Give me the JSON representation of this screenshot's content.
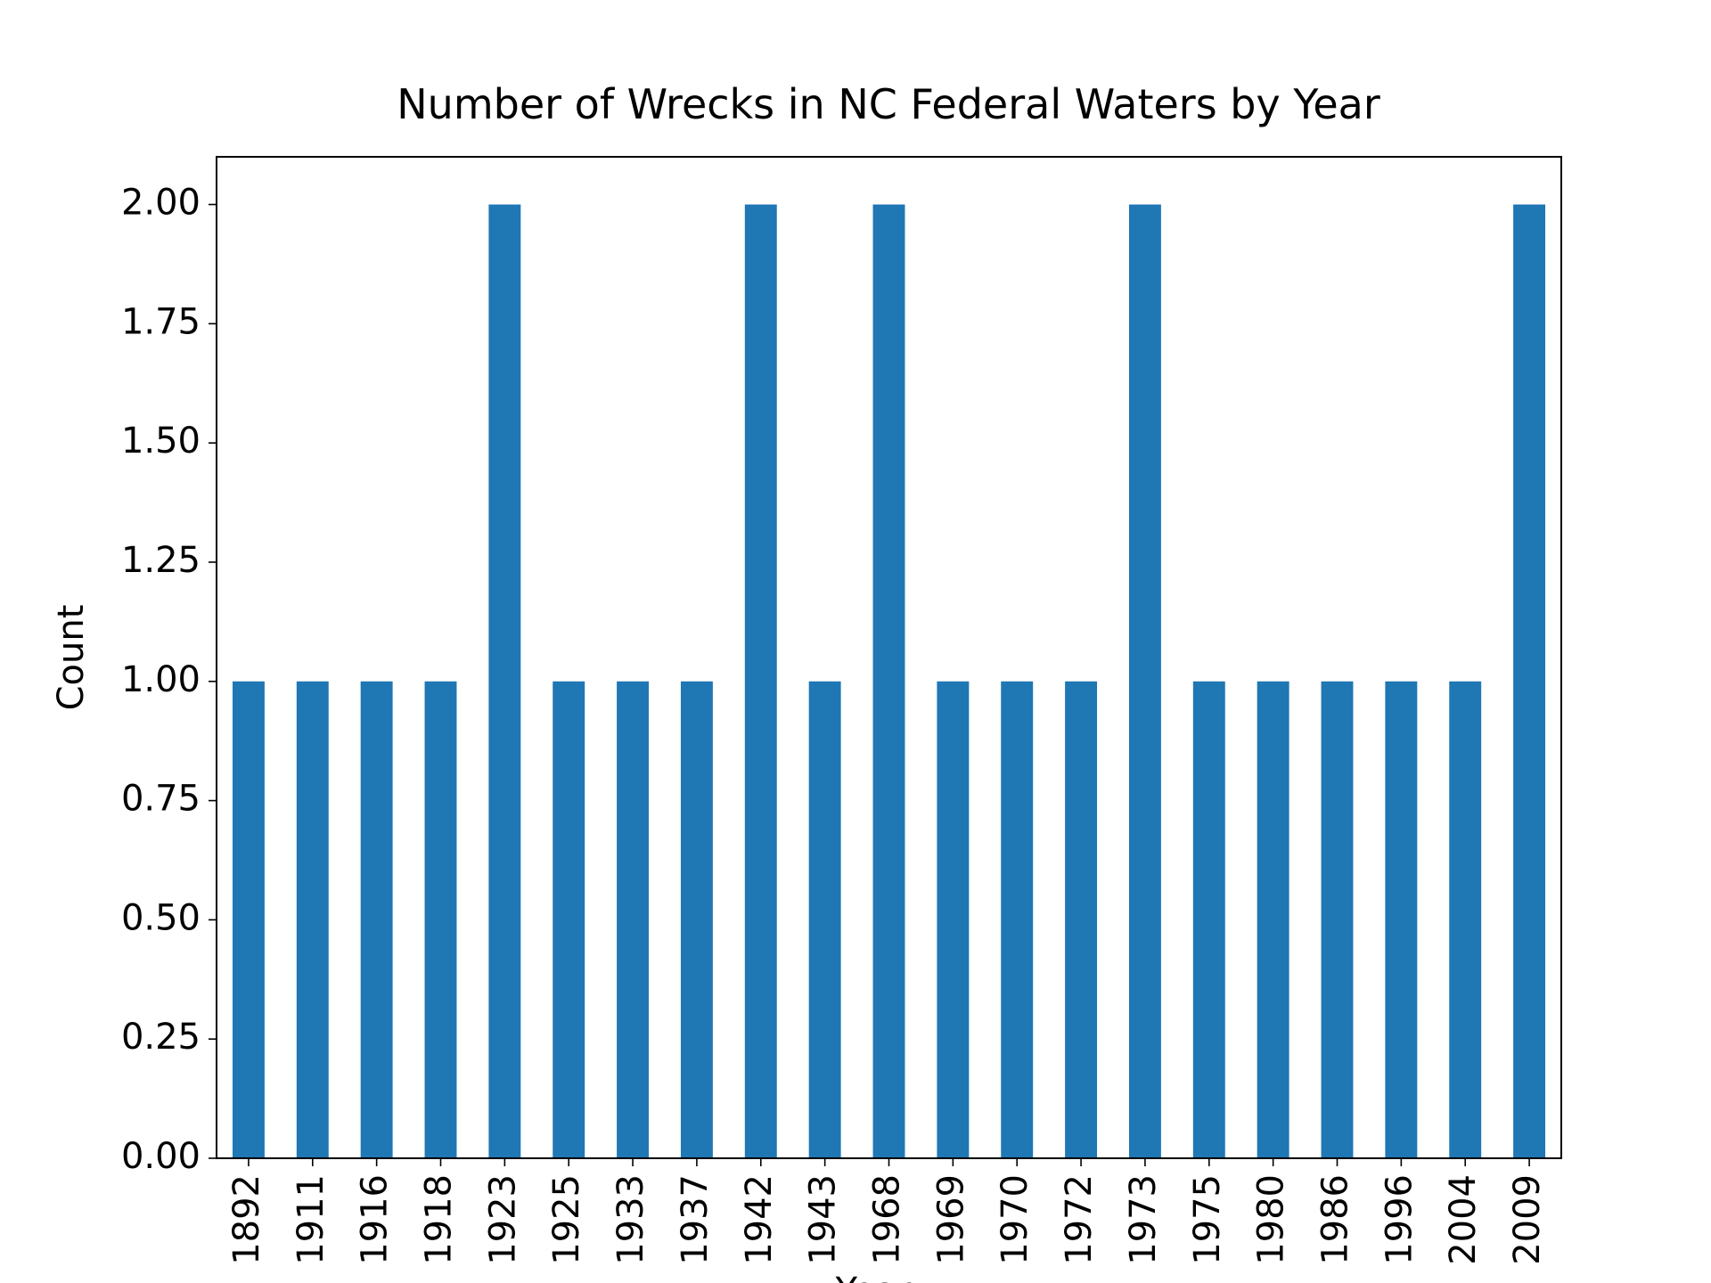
{
  "chart_data": {
    "type": "bar",
    "title": "Number of Wrecks in NC Federal Waters by Year",
    "xlabel": "Year",
    "ylabel": "Count",
    "categories": [
      "1892",
      "1911",
      "1916",
      "1918",
      "1923",
      "1925",
      "1933",
      "1937",
      "1942",
      "1943",
      "1968",
      "1969",
      "1970",
      "1972",
      "1973",
      "1975",
      "1980",
      "1986",
      "1996",
      "2004",
      "2009"
    ],
    "values": [
      1,
      1,
      1,
      1,
      2,
      1,
      1,
      1,
      2,
      1,
      2,
      1,
      1,
      1,
      2,
      1,
      1,
      1,
      1,
      1,
      2
    ],
    "color": "#1f77b4",
    "ylim": [
      0,
      2.1
    ],
    "yticks": [
      {
        "value": 0,
        "label": "0.00"
      },
      {
        "value": 0.25,
        "label": "0.25"
      },
      {
        "value": 0.5,
        "label": "0.50"
      },
      {
        "value": 0.75,
        "label": "0.75"
      },
      {
        "value": 1,
        "label": "1.00"
      },
      {
        "value": 1.25,
        "label": "1.25"
      },
      {
        "value": 1.5,
        "label": "1.50"
      },
      {
        "value": 1.75,
        "label": "1.75"
      },
      {
        "value": 2,
        "label": "2.00"
      }
    ],
    "grid": false
  }
}
